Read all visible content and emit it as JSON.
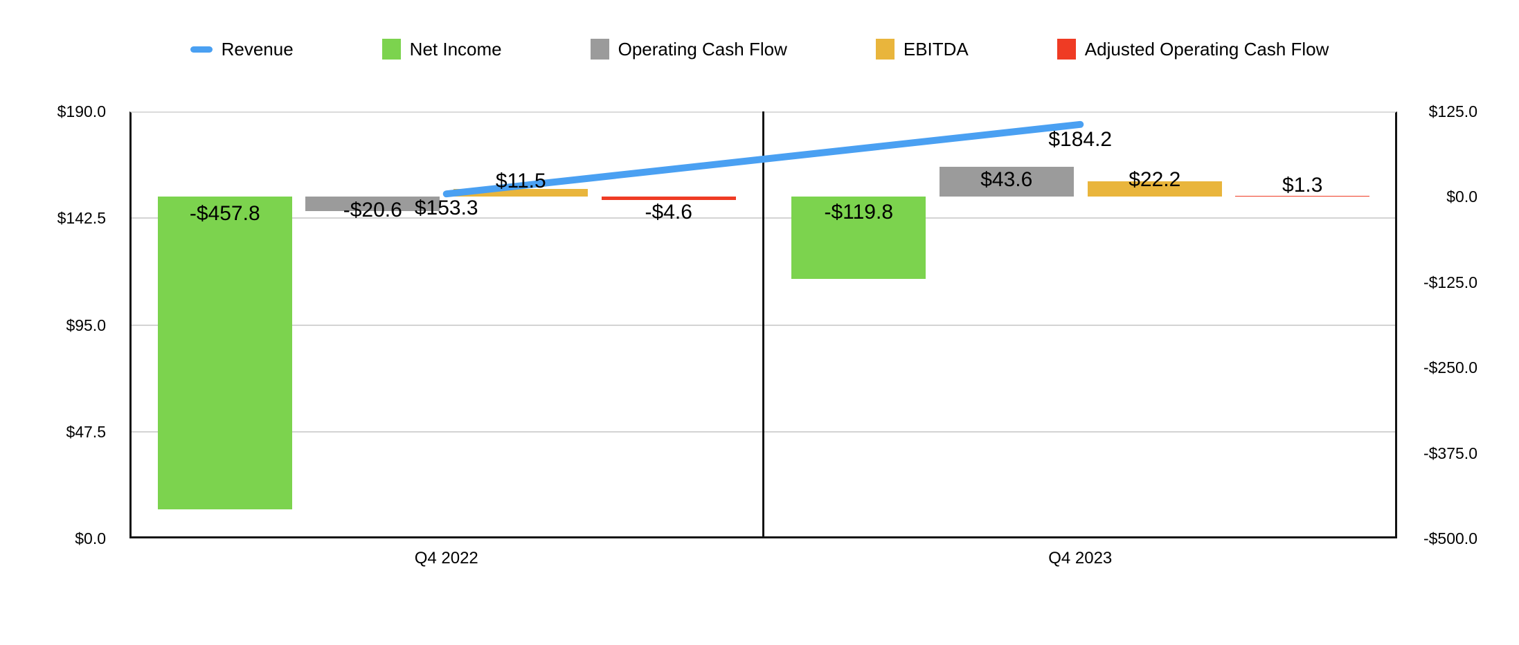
{
  "chart_data": {
    "type": "combo-bar-line",
    "categories": [
      "Q4 2022",
      "Q4 2023"
    ],
    "series": [
      {
        "name": "Revenue",
        "kind": "line",
        "axis": "left",
        "color": "#4AA0F2",
        "values": [
          153.3,
          184.2
        ],
        "data_labels": [
          "$153.3",
          "$184.2"
        ]
      },
      {
        "name": "Net Income",
        "kind": "bar",
        "axis": "right",
        "color": "#7CD34E",
        "values": [
          -457.8,
          -119.8
        ],
        "data_labels": [
          "-$457.8",
          "-$119.8"
        ]
      },
      {
        "name": "Operating Cash Flow",
        "kind": "bar",
        "axis": "right",
        "color": "#9B9B9B",
        "values": [
          -20.6,
          43.6
        ],
        "data_labels": [
          "-$20.6",
          "$43.6"
        ]
      },
      {
        "name": "EBITDA",
        "kind": "bar",
        "axis": "right",
        "color": "#E9B53C",
        "values": [
          11.5,
          22.2
        ],
        "data_labels": [
          "$11.5",
          "$22.2"
        ]
      },
      {
        "name": "Adjusted Operating Cash Flow",
        "kind": "bar",
        "axis": "right",
        "color": "#EF3B24",
        "values": [
          -4.6,
          1.3
        ],
        "data_labels": [
          "-$4.6",
          "$1.3"
        ]
      }
    ],
    "left_axis": {
      "min": 0,
      "max": 190,
      "tick_labels": [
        "$190.0",
        "$142.5",
        "$95.0",
        "$47.5",
        "$0.0"
      ],
      "tick_values": [
        190,
        142.5,
        95,
        47.5,
        0
      ]
    },
    "right_axis": {
      "min": -500,
      "max": 125,
      "tick_labels": [
        "$125.0",
        "$0.0",
        "-$125.0",
        "-$250.0",
        "-$375.0",
        "-$500.0"
      ],
      "tick_values": [
        125,
        0,
        -125,
        -250,
        -375,
        -500
      ]
    },
    "gridline_values_left_axis": [
      142.5,
      95,
      47.5
    ],
    "legend_position": "top",
    "grid": "horizontal"
  }
}
